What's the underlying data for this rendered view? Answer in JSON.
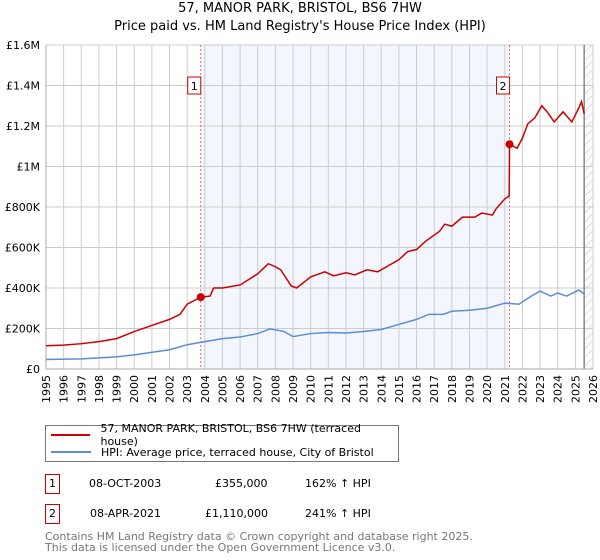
{
  "title": "57, MANOR PARK, BRISTOL, BS6 7HW",
  "subtitle": "Price paid vs. HM Land Registry's House Price Index (HPI)",
  "chart_data": {
    "type": "line",
    "title": "57, MANOR PARK, BRISTOL, BS6 7HW",
    "subtitle": "Price paid vs. HM Land Registry's House Price Index (HPI)",
    "xlim": [
      1995,
      2026
    ],
    "ylim": [
      0,
      1600000
    ],
    "x_ticks": [
      "1995",
      "1996",
      "1997",
      "1998",
      "1999",
      "2000",
      "2001",
      "2002",
      "2003",
      "2004",
      "2005",
      "2006",
      "2007",
      "2008",
      "2009",
      "2010",
      "2011",
      "2012",
      "2013",
      "2014",
      "2015",
      "2016",
      "2017",
      "2018",
      "2019",
      "2020",
      "2021",
      "2022",
      "2023",
      "2024",
      "2025",
      "2026"
    ],
    "y_ticks": [
      {
        "v": 0,
        "label": "£0"
      },
      {
        "v": 200000,
        "label": "£200K"
      },
      {
        "v": 400000,
        "label": "£400K"
      },
      {
        "v": 600000,
        "label": "£600K"
      },
      {
        "v": 800000,
        "label": "£800K"
      },
      {
        "v": 1000000,
        "label": "£1M"
      },
      {
        "v": 1200000,
        "label": "£1.2M"
      },
      {
        "v": 1400000,
        "label": "£1.4M"
      },
      {
        "v": 1600000,
        "label": "£1.6M"
      }
    ],
    "grid": true,
    "shaded_range": [
      2003.77,
      2021.27
    ],
    "forecast_start": 2025.5,
    "series": [
      {
        "name": "57, MANOR PARK, BRISTOL, BS6 7HW (terraced house)",
        "color": "#cc0000",
        "x": [
          1995,
          1996,
          1997,
          1998,
          1999,
          2000,
          2001,
          2002,
          2002.6,
          2003,
          2003.77,
          2004.3,
          2004.5,
          2005,
          2006,
          2007,
          2007.6,
          2008,
          2008.3,
          2008.9,
          2009.2,
          2010,
          2010.8,
          2011.3,
          2012,
          2012.5,
          2013.2,
          2013.8,
          2014.3,
          2015,
          2015.5,
          2016,
          2016.5,
          2017.3,
          2017.6,
          2018,
          2018.6,
          2019.3,
          2019.7,
          2020.3,
          2020.5,
          2021,
          2021.25,
          2021.27,
          2021.7,
          2022,
          2022.3,
          2022.7,
          2023.1,
          2023.4,
          2023.8,
          2024.3,
          2024.8,
          2025.2,
          2025.35,
          2025.5
        ],
        "y": [
          115000,
          118000,
          125000,
          135000,
          150000,
          185000,
          215000,
          245000,
          270000,
          320000,
          355000,
          360000,
          400000,
          400000,
          415000,
          470000,
          520000,
          505000,
          490000,
          410000,
          400000,
          455000,
          480000,
          460000,
          475000,
          465000,
          490000,
          480000,
          505000,
          540000,
          580000,
          590000,
          630000,
          680000,
          715000,
          705000,
          750000,
          750000,
          770000,
          760000,
          790000,
          840000,
          855000,
          1110000,
          1090000,
          1140000,
          1210000,
          1240000,
          1300000,
          1270000,
          1220000,
          1270000,
          1220000,
          1290000,
          1320000,
          1260000
        ]
      },
      {
        "name": "HPI: Average price, terraced house, City of Bristol",
        "color": "#5b8dd6",
        "x": [
          1995,
          1997,
          1999,
          2000,
          2002,
          2003,
          2004,
          2005,
          2006,
          2007,
          2007.7,
          2008.5,
          2009,
          2010,
          2011,
          2012,
          2013,
          2014,
          2015,
          2016,
          2016.7,
          2017.5,
          2018,
          2019,
          2020,
          2021,
          2021.8,
          2022.5,
          2023,
          2023.6,
          2024,
          2024.5,
          2025.2,
          2025.5
        ],
        "y": [
          47000,
          50000,
          60000,
          70000,
          95000,
          120000,
          135000,
          150000,
          158000,
          175000,
          198000,
          185000,
          160000,
          175000,
          180000,
          178000,
          185000,
          195000,
          220000,
          245000,
          270000,
          270000,
          285000,
          290000,
          300000,
          325000,
          320000,
          360000,
          385000,
          360000,
          375000,
          360000,
          390000,
          370000
        ]
      }
    ],
    "annotations": [
      {
        "label": "1",
        "x": 2003.77,
        "y": 355000
      },
      {
        "label": "2",
        "x": 2021.27,
        "y": 1110000
      }
    ]
  },
  "legend": {
    "red": "57, MANOR PARK, BRISTOL, BS6 7HW (terraced house)",
    "blue": "HPI: Average price, terraced house, City of Bristol"
  },
  "transactions": [
    {
      "num": "1",
      "date": "08-OCT-2003",
      "price": "£355,000",
      "hpi": "162% ↑ HPI"
    },
    {
      "num": "2",
      "date": "08-APR-2021",
      "price": "£1,110,000",
      "hpi": "241% ↑ HPI"
    }
  ],
  "footer": [
    "Contains HM Land Registry data © Crown copyright and database right 2025.",
    "This data is licensed under the Open Government Licence v3.0."
  ]
}
